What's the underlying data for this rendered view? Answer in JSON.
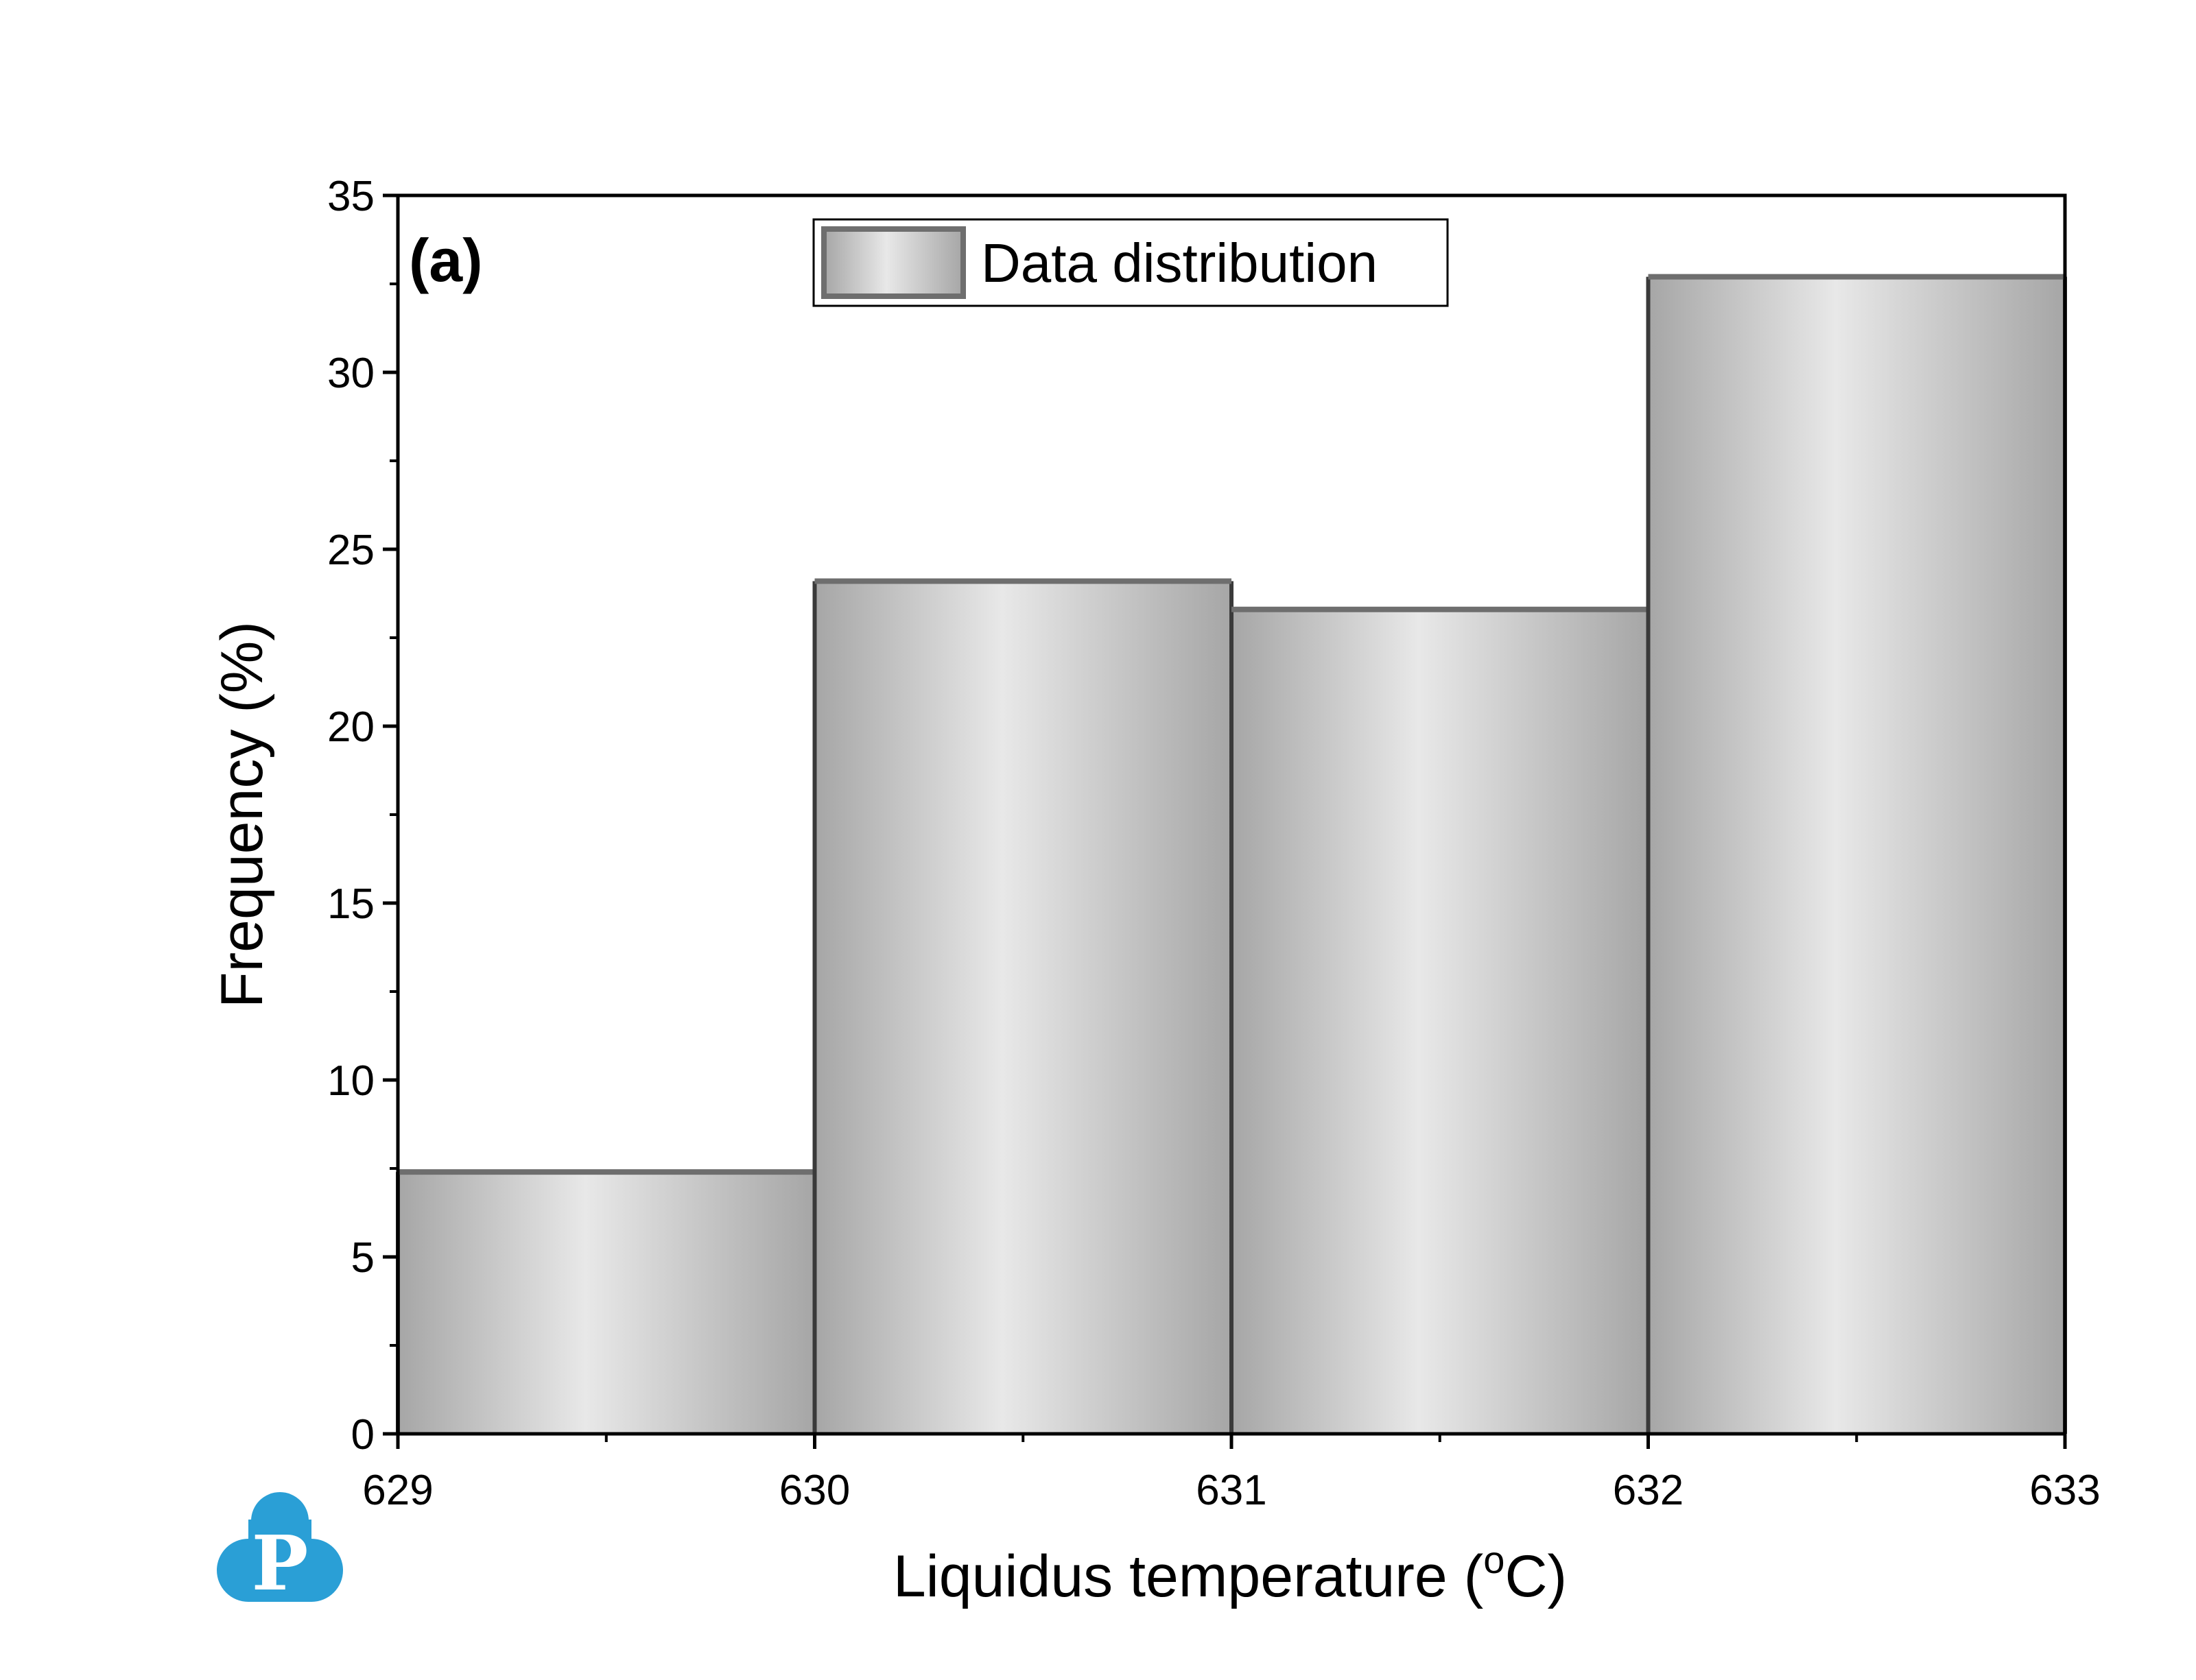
{
  "chart_data": {
    "type": "bar",
    "panel_label": "(a)",
    "xlabel_main": "Liquidus temperature (",
    "xlabel_sup": "o",
    "xlabel_end": "C)",
    "ylabel": "Frequency (%)",
    "bins": [
      {
        "start": 629,
        "end": 630,
        "value": 7.4
      },
      {
        "start": 630,
        "end": 631,
        "value": 24.1
      },
      {
        "start": 631,
        "end": 632,
        "value": 23.3
      },
      {
        "start": 632,
        "end": 633,
        "value": 32.7
      }
    ],
    "series": [
      {
        "name": "Data distribution"
      }
    ],
    "xlim": [
      629,
      633
    ],
    "ylim": [
      0,
      35
    ],
    "x_ticks": [
      629,
      630,
      631,
      632,
      633
    ],
    "x_tick_labels": [
      "629",
      "630",
      "631",
      "632",
      "633"
    ],
    "y_ticks": [
      0,
      5,
      10,
      15,
      20,
      25,
      30,
      35
    ],
    "y_tick_labels": [
      "0",
      "5",
      "10",
      "15",
      "20",
      "25",
      "30",
      "35"
    ],
    "grid": false,
    "legend_position": "top-center"
  },
  "colors": {
    "bar_edge": "#3a3a3a",
    "bar_top": "#6e6e6e",
    "gradient_dark": "#a6a6a6",
    "gradient_light": "#e8e8e8",
    "logo_blue": "#2a9fd6"
  },
  "logo": {
    "icon": "cloud-p-logo-icon",
    "letter": "P"
  }
}
